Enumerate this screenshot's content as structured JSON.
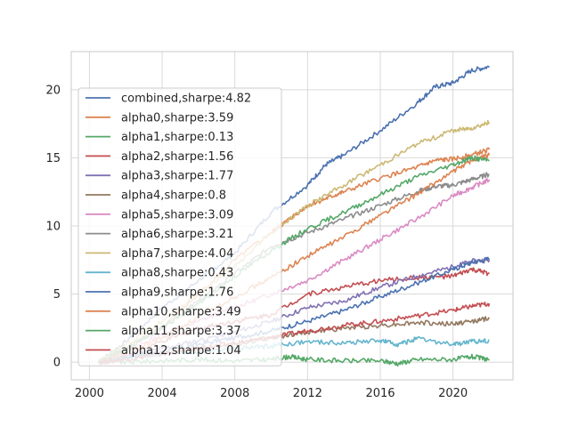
{
  "chart_data": {
    "type": "line",
    "title": "",
    "xlabel": "",
    "ylabel": "",
    "xlim": [
      1999,
      2023.3
    ],
    "ylim": [
      -1.3,
      22.8
    ],
    "x_ticks": [
      2000,
      2004,
      2008,
      2012,
      2016,
      2020
    ],
    "x_tick_labels": [
      "2000",
      "2004",
      "2008",
      "2012",
      "2016",
      "2020"
    ],
    "y_ticks": [
      0,
      5,
      10,
      15,
      20
    ],
    "y_tick_labels": [
      "0",
      "5",
      "10",
      "15",
      "20"
    ],
    "grid": true,
    "legend_position": "upper-left",
    "colors": {
      "grid": "#d9d9d9",
      "axes_edge": "#c8c8c8",
      "tick_text": "#262626",
      "legend_bg": "#ffffff",
      "legend_border": "#cccccc"
    },
    "series": [
      {
        "name": "combined,sharpe:4.82",
        "color": "#4c72b0",
        "x": [
          2000.5,
          2002,
          2004,
          2006,
          2008,
          2010,
          2012,
          2013,
          2014,
          2016,
          2018,
          2019,
          2020,
          2021,
          2022
        ],
        "y": [
          0,
          1.5,
          4,
          6,
          8,
          11,
          13,
          14.5,
          15.2,
          17,
          19,
          20.2,
          20.5,
          21.4,
          21.7
        ]
      },
      {
        "name": "alpha0,sharpe:3.59",
        "color": "#dd8452",
        "x": [
          2000.5,
          2002,
          2004,
          2006,
          2008,
          2010,
          2011,
          2012,
          2013,
          2014,
          2016,
          2018,
          2019,
          2020,
          2021,
          2022
        ],
        "y": [
          0,
          1,
          2.5,
          5,
          7.5,
          9.5,
          10.5,
          11.5,
          12,
          12.5,
          13.5,
          14.3,
          14.8,
          14.9,
          15.2,
          15.6
        ]
      },
      {
        "name": "alpha1,sharpe:0.13",
        "color": "#55a868",
        "x": [
          2000.5,
          2002,
          2004,
          2006,
          2008,
          2010,
          2011,
          2012,
          2014,
          2016,
          2017,
          2018,
          2020,
          2021,
          2022
        ],
        "y": [
          0,
          0,
          0.1,
          0.2,
          0.1,
          0.2,
          0.4,
          0.2,
          0.1,
          0.1,
          -0.1,
          0.2,
          0.2,
          0.4,
          0.2
        ]
      },
      {
        "name": "alpha2,sharpe:1.56",
        "color": "#c44e52",
        "x": [
          2000.5,
          2002,
          2004,
          2006,
          2008,
          2010,
          2012,
          2014,
          2016,
          2018,
          2020,
          2021,
          2022
        ],
        "y": [
          0,
          0.5,
          1.5,
          2.5,
          3,
          3.5,
          5,
          5.5,
          6,
          6.2,
          6.3,
          6.8,
          6.5
        ]
      },
      {
        "name": "alpha3,sharpe:1.77",
        "color": "#8172b3",
        "x": [
          2000.5,
          2002,
          2004,
          2006,
          2008,
          2010,
          2012,
          2014,
          2016,
          2018,
          2020,
          2021,
          2022
        ],
        "y": [
          0,
          0.4,
          1,
          1.6,
          2.2,
          3,
          4,
          4.5,
          5.5,
          6.3,
          7,
          7.4,
          7.5
        ]
      },
      {
        "name": "alpha4,sharpe:0.8",
        "color": "#937860",
        "x": [
          2000.5,
          2002,
          2004,
          2006,
          2008,
          2010,
          2012,
          2014,
          2016,
          2018,
          2020,
          2021,
          2022
        ],
        "y": [
          0,
          0.3,
          0.7,
          1,
          1.3,
          1.8,
          2.2,
          2.5,
          2.7,
          2.9,
          2.8,
          3,
          3.2
        ]
      },
      {
        "name": "alpha5,sharpe:3.09",
        "color": "#da8bc3",
        "x": [
          2000.5,
          2002,
          2004,
          2006,
          2008,
          2010,
          2012,
          2014,
          2016,
          2018,
          2020,
          2021,
          2022
        ],
        "y": [
          0,
          0.8,
          2,
          3,
          4,
          5,
          6,
          7.5,
          9,
          10.5,
          12.2,
          12.8,
          13.4
        ]
      },
      {
        "name": "alpha6,sharpe:3.21",
        "color": "#8c8c8c",
        "x": [
          2000.5,
          2002,
          2004,
          2006,
          2008,
          2010,
          2012,
          2014,
          2016,
          2018,
          2019,
          2020,
          2021,
          2022
        ],
        "y": [
          0,
          1,
          2.5,
          4.5,
          6.5,
          8.5,
          9.5,
          10.5,
          11.5,
          12.5,
          12.9,
          13,
          13.4,
          13.8
        ]
      },
      {
        "name": "alpha7,sharpe:4.04",
        "color": "#ccb974",
        "x": [
          2000.5,
          2002,
          2004,
          2006,
          2008,
          2010,
          2012,
          2014,
          2016,
          2018,
          2020,
          2021,
          2022
        ],
        "y": [
          0,
          1.3,
          3,
          5,
          7,
          9.5,
          11.5,
          13,
          14.5,
          16,
          17,
          17.2,
          17.6
        ]
      },
      {
        "name": "alpha8,sharpe:0.43",
        "color": "#64b5cd",
        "x": [
          2000.5,
          2002,
          2004,
          2006,
          2008,
          2010,
          2012,
          2014,
          2016,
          2017,
          2018,
          2020,
          2021,
          2022
        ],
        "y": [
          0,
          0.3,
          0.6,
          0.8,
          1,
          1.2,
          1.5,
          1.4,
          1.6,
          1.3,
          1.7,
          1.3,
          1.5,
          1.6
        ]
      },
      {
        "name": "alpha9,sharpe:1.76",
        "color": "#4c72b0",
        "x": [
          2000.5,
          2002,
          2004,
          2006,
          2008,
          2010,
          2012,
          2014,
          2016,
          2018,
          2020,
          2021,
          2022
        ],
        "y": [
          0,
          0.3,
          0.8,
          1.3,
          1.8,
          2.3,
          3,
          3.8,
          4.8,
          5.8,
          6.8,
          7.3,
          7.6
        ]
      },
      {
        "name": "alpha10,sharpe:3.49",
        "color": "#dd8452",
        "x": [
          2000.5,
          2002,
          2004,
          2006,
          2008,
          2010,
          2012,
          2014,
          2016,
          2018,
          2020,
          2021,
          2022
        ],
        "y": [
          0,
          0.7,
          1.8,
          3.3,
          4.8,
          6.2,
          7.8,
          9.2,
          10.8,
          12.3,
          14,
          14.8,
          15.2
        ]
      },
      {
        "name": "alpha11,sharpe:3.37",
        "color": "#55a868",
        "x": [
          2000.5,
          2002,
          2004,
          2006,
          2008,
          2010,
          2012,
          2014,
          2016,
          2018,
          2020,
          2021,
          2022
        ],
        "y": [
          0,
          1,
          2.5,
          4.3,
          6.3,
          8.2,
          9.8,
          11,
          12.3,
          13.6,
          14.5,
          15,
          14.8
        ]
      },
      {
        "name": "alpha12,sharpe:1.04",
        "color": "#c44e52",
        "x": [
          2000.5,
          2002,
          2004,
          2006,
          2008,
          2010,
          2012,
          2014,
          2016,
          2018,
          2020,
          2021,
          2022
        ],
        "y": [
          0,
          0.2,
          0.6,
          1,
          1.4,
          1.8,
          2.3,
          2.7,
          3,
          3.4,
          3.8,
          4.1,
          4.3
        ]
      }
    ]
  }
}
